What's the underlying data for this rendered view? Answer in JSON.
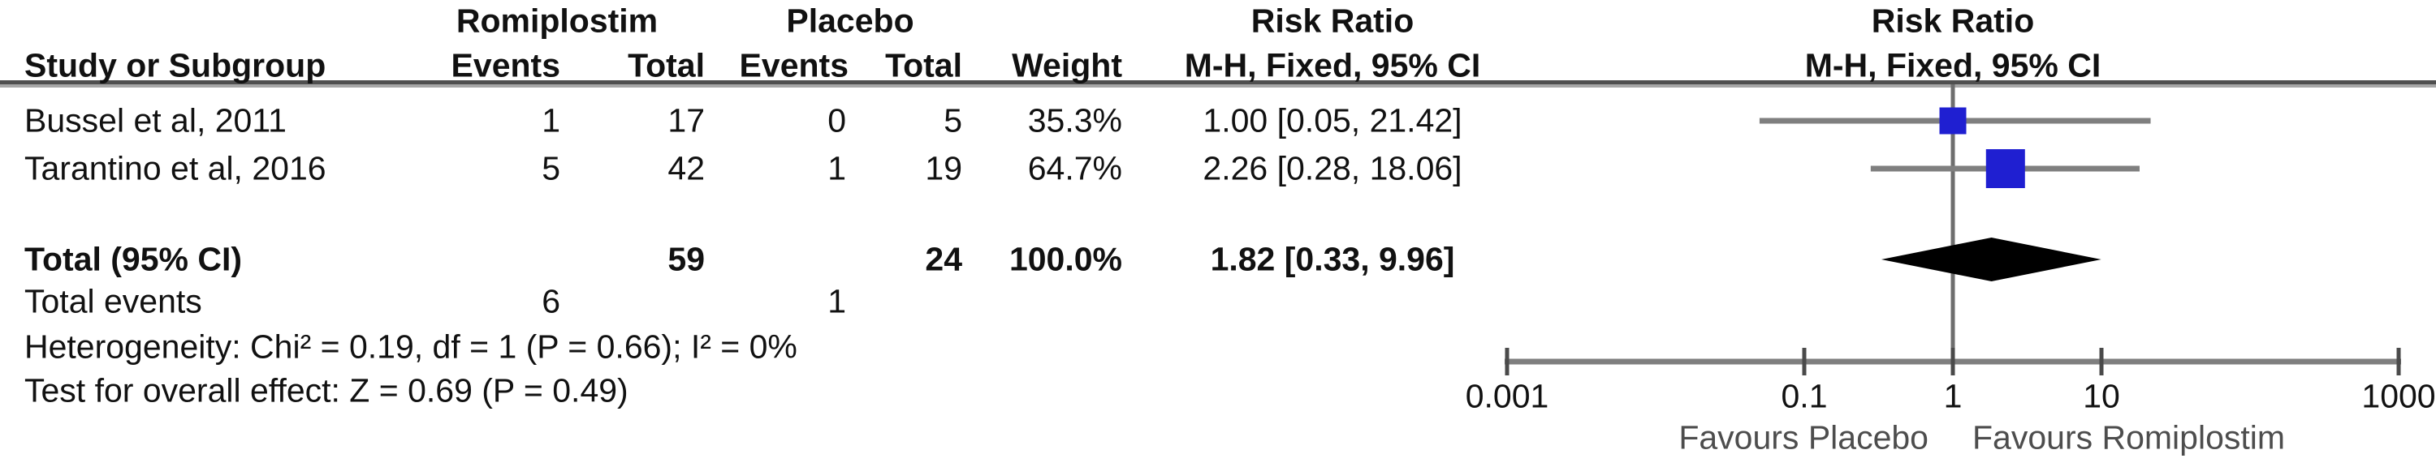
{
  "table": {
    "group1_header": "Romiplostim",
    "group2_header": "Placebo",
    "effect_header_left": "Risk Ratio",
    "effect_header_right": "Risk Ratio",
    "columns": {
      "study": "Study or Subgroup",
      "events1": "Events",
      "total1": "Total",
      "events2": "Events",
      "total2": "Total",
      "weight": "Weight",
      "ci_left": "M-H, Fixed, 95% CI",
      "ci_right": "M-H, Fixed, 95% CI"
    },
    "rows": [
      {
        "study": "Bussel et al, 2011",
        "events1": "1",
        "total1": "17",
        "events2": "0",
        "total2": "5",
        "weight": "35.3%",
        "ci": "1.00 [0.05, 21.42]"
      },
      {
        "study": "Tarantino et al, 2016",
        "events1": "5",
        "total1": "42",
        "events2": "1",
        "total2": "19",
        "weight": "64.7%",
        "ci": "2.26 [0.28, 18.06]"
      }
    ],
    "total_row": {
      "label": "Total (95% CI)",
      "total1": "59",
      "total2": "24",
      "weight": "100.0%",
      "ci": "1.82 [0.33, 9.96]"
    },
    "total_events_row": {
      "label": "Total events",
      "events1": "6",
      "events2": "1"
    },
    "heterogeneity_line": "Heterogeneity: Chi² = 0.19, df = 1 (P = 0.66); I² = 0%",
    "overall_effect_line": "Test for overall effect: Z = 0.69 (P = 0.49)"
  },
  "chart_data": {
    "type": "scatter",
    "subtype": "forest-plot",
    "scale": "log10",
    "effect_measure": "Risk Ratio (M-H, Fixed, 95% CI)",
    "axis": {
      "tick_values": [
        0.001,
        0.1,
        1,
        10,
        1000
      ],
      "tick_labels": [
        "0.001",
        "0.1",
        "1",
        "10",
        "1000"
      ],
      "range": [
        0.001,
        1000
      ],
      "null_line_value": 1
    },
    "studies": [
      {
        "name": "Bussel et al, 2011",
        "rr": 1.0,
        "ci_low": 0.05,
        "ci_high": 21.42,
        "weight_pct": 35.3
      },
      {
        "name": "Tarantino et al, 2016",
        "rr": 2.26,
        "ci_low": 0.28,
        "ci_high": 18.06,
        "weight_pct": 64.7
      }
    ],
    "pooled": {
      "label": "Total (95% CI)",
      "rr": 1.82,
      "ci_low": 0.33,
      "ci_high": 9.96,
      "weight_pct": 100.0
    },
    "favours_left_label": "Favours Placebo",
    "favours_right_label": "Favours Romiplostim",
    "colors": {
      "square": "#1F1FD1",
      "ci_line": "#7F7F7F",
      "diamond": "#000000",
      "axis_line": "#6E6E6E",
      "tick": "#4A4A4A",
      "separator_dark": "#4F4F4F",
      "separator_light": "#A6A6A6"
    }
  }
}
